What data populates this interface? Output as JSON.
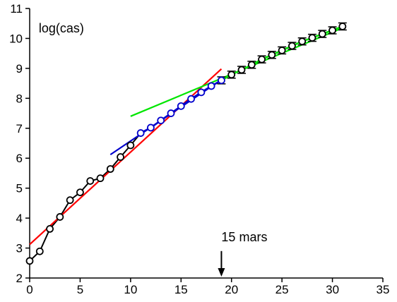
{
  "chart_data": {
    "type": "line",
    "title": "",
    "xlabel": "",
    "ylabel": "log(cas)",
    "xlim": [
      0,
      35
    ],
    "ylim": [
      2,
      11
    ],
    "x_ticks": [
      0,
      5,
      10,
      15,
      20,
      25,
      30,
      35
    ],
    "y_ticks": [
      2,
      3,
      4,
      5,
      6,
      7,
      8,
      9,
      10,
      11
    ],
    "grid": false,
    "series": [
      {
        "marker": "circle",
        "color": "#000000",
        "x": [
          0,
          1,
          2,
          3,
          4,
          5,
          6,
          7,
          8,
          9,
          10,
          11,
          12,
          13,
          14,
          15,
          16,
          17,
          18,
          19,
          20,
          21,
          22,
          23,
          24,
          25,
          26,
          27,
          28,
          29,
          30,
          31
        ],
        "y": [
          2.57,
          2.89,
          3.64,
          4.04,
          4.6,
          4.86,
          5.24,
          5.33,
          5.64,
          6.04,
          6.43,
          6.84,
          7.02,
          7.26,
          7.5,
          7.74,
          7.98,
          8.2,
          8.41,
          8.6,
          8.79,
          8.95,
          9.12,
          9.3,
          9.45,
          9.6,
          9.75,
          9.9,
          10.02,
          10.15,
          10.27,
          10.4
        ]
      }
    ],
    "fits": [
      {
        "color": "#ff0000",
        "x": [
          0,
          19
        ],
        "y": [
          3.12,
          8.98
        ]
      },
      {
        "color": "#0000cc",
        "x": [
          8,
          19
        ],
        "y": [
          6.12,
          8.62
        ]
      },
      {
        "color": "#00e600",
        "x": [
          10,
          31
        ],
        "y": [
          7.4,
          10.35
        ]
      }
    ],
    "highlights": [
      {
        "color": "#0000cc",
        "x_from": 11,
        "x_to": 19
      },
      {
        "color": "#00e600",
        "x_from": 19,
        "x_to": 31,
        "marker": "tick"
      }
    ],
    "annotations": [
      {
        "text": "15 mars",
        "x": 19,
        "arrow_from_y": 2.9,
        "arrow_to_y": 2
      }
    ]
  },
  "colors": {
    "axis": "#000000",
    "background": "#ffffff"
  }
}
